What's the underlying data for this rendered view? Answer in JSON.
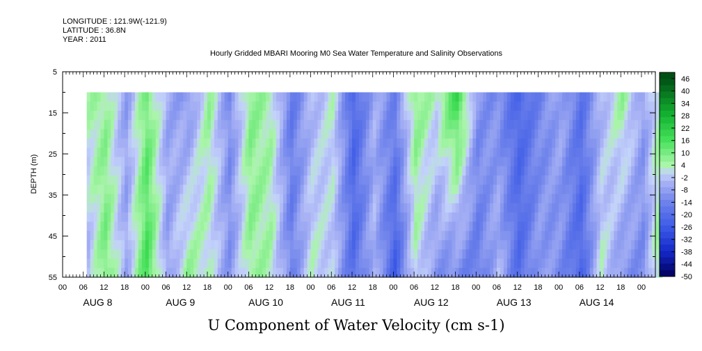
{
  "header": {
    "longitude": "LONGITUDE : 121.9W(-121.9)",
    "latitude": "LATITUDE : 36.8N",
    "year": "YEAR : 2011",
    "title": "Hourly Gridded MBARI Mooring M0 Sea Water Temperature and Salinity Observations"
  },
  "chart_data": {
    "type": "heatmap",
    "title": "Hourly Gridded MBARI Mooring M0 Sea Water Temperature and Salinity Observations",
    "subtitle": "U Component of Water Velocity (cm s-1)",
    "ylabel": "DEPTH (m)",
    "xlabel": "",
    "ylim": [
      55,
      5
    ],
    "y_ticks": [
      "5",
      "15",
      "25",
      "35",
      "45",
      "55"
    ],
    "x_hour_ticks": [
      "00",
      "06",
      "12",
      "18",
      "00",
      "06",
      "12",
      "18",
      "00",
      "06",
      "12",
      "18",
      "00",
      "06",
      "12",
      "18",
      "00",
      "06",
      "12",
      "18",
      "00",
      "06",
      "12",
      "18",
      "00",
      "06",
      "12",
      "18",
      "00"
    ],
    "x_day_labels": [
      "AUG 8",
      "AUG 9",
      "AUG 10",
      "AUG 11",
      "AUG 12",
      "AUG 13",
      "AUG 14"
    ],
    "data_depth_range": [
      10,
      55
    ],
    "data_time_start_hours": 7,
    "colorbar": {
      "labels": [
        "46",
        "40",
        "34",
        "28",
        "22",
        "16",
        "10",
        "4",
        "-2",
        "-8",
        "-14",
        "-20",
        "-26",
        "-32",
        "-38",
        "-44",
        "-50"
      ]
    },
    "approx_column_pattern": {
      "description": "Approximate U velocity (cm s-1) by time column, surface to bottom alternating positive (green) and negative (blue) bands",
      "time_hours": [
        7,
        12,
        18,
        24,
        30,
        36,
        42,
        48,
        54,
        60,
        66,
        72,
        78,
        84,
        90,
        96,
        102,
        108,
        114,
        120,
        126,
        132,
        138,
        144,
        150,
        156,
        162,
        168,
        174
      ],
      "u_surface": [
        4,
        6,
        -8,
        10,
        -6,
        -10,
        6,
        -12,
        8,
        4,
        -16,
        -4,
        2,
        -22,
        -6,
        -14,
        8,
        2,
        18,
        -10,
        -12,
        -22,
        -14,
        -6,
        -18,
        -4,
        6,
        -8,
        8
      ],
      "u_bottom": [
        -4,
        10,
        -6,
        16,
        -8,
        6,
        2,
        -10,
        6,
        4,
        -14,
        2,
        -2,
        -20,
        -4,
        -24,
        2,
        -10,
        -12,
        -16,
        -4,
        -20,
        -8,
        -12,
        -22,
        2,
        -10,
        -12,
        12
      ]
    }
  }
}
